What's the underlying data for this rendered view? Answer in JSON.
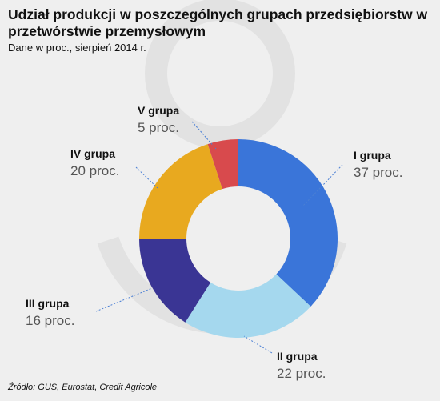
{
  "header": {
    "title": "Udział produkcji w poszczególnych grupach przedsiębiorstw w przetwórstwie przemysłowym",
    "subtitle": "Dane w proc., sierpień 2014 r."
  },
  "footer": {
    "source": "Źródło: GUS, Eurostat, Credit Agricole"
  },
  "chart_data": {
    "type": "pie",
    "variant": "donut",
    "title": "Udział produkcji w poszczególnych grupach przedsiębiorstw w przetwórstwie przemysłowym",
    "subtitle": "Dane w proc., sierpień 2014 r.",
    "unit": "proc.",
    "slices": [
      {
        "label": "I grupa",
        "value": 37,
        "value_label": "37 proc.",
        "color": "#3a75d9"
      },
      {
        "label": "II grupa",
        "value": 22,
        "value_label": "22 proc.",
        "color": "#a5d8ee"
      },
      {
        "label": "III grupa",
        "value": 16,
        "value_label": "16 proc.",
        "color": "#3a3594"
      },
      {
        "label": "IV grupa",
        "value": 20,
        "value_label": "20 proc.",
        "color": "#e8a91f"
      },
      {
        "label": "V grupa",
        "value": 5,
        "value_label": "5 proc.",
        "color": "#d84a4d"
      }
    ],
    "legend": "none"
  }
}
